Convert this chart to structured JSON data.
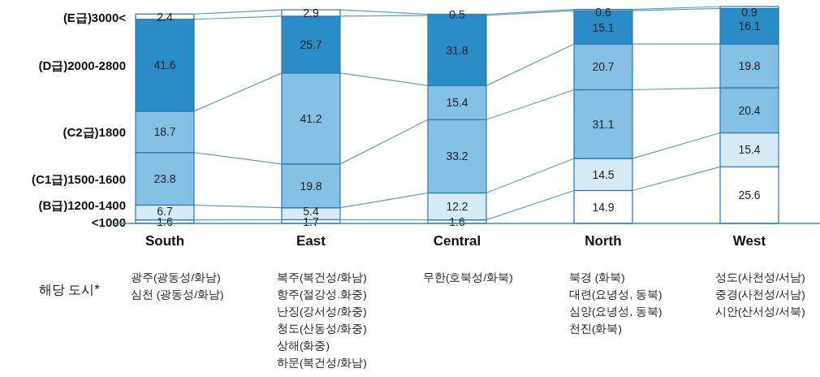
{
  "chart_data": {
    "type": "bar",
    "stacked": true,
    "data_labels": true,
    "categories": [
      "South",
      "East",
      "Central",
      "North",
      "West"
    ],
    "series": [
      {
        "name": "<1000",
        "color": "#ffffff",
        "values": [
          1.6,
          1.7,
          1.6,
          14.9,
          25.6
        ]
      },
      {
        "name": "(B급)1200-1400",
        "color": "#d6eaf6",
        "values": [
          6.7,
          5.4,
          12.2,
          14.5,
          15.4
        ]
      },
      {
        "name": "(C1급)1500-1600",
        "color": "#85c1e4",
        "values": [
          23.8,
          19.8,
          33.2,
          31.1,
          20.4
        ]
      },
      {
        "name": "(C2급)1800",
        "color": "#85c1e4",
        "values": [
          18.7,
          41.2,
          15.4,
          20.7,
          19.8
        ]
      },
      {
        "name": "(D급)2000-2800",
        "color": "#2a8dc8",
        "values": [
          41.6,
          25.7,
          31.8,
          15.1,
          16.1
        ]
      },
      {
        "name": "(E급)3000<",
        "color": "#ffffff",
        "values": [
          2.4,
          2.9,
          0.5,
          0.6,
          0.9
        ]
      }
    ],
    "annotations": [
      "해당 도시*",
      "광주(광동성/화남)\n심천 (광동성/화남)",
      "복주(복건성/화남)\n항주(절강성.화중)\n난징(강서성/화중)\n청도(산동성/화중)\n상해(화중)\n하문(복건성/화남)",
      "무한(호북성/화북)",
      "북경 (화북)\n대련(요녕성, 동북)\n심양(요녕성, 동북)\n천진(화북)",
      "성도(사천성/서남)\n중경(사천성/서남)\n시안(산서성/서북)"
    ]
  }
}
